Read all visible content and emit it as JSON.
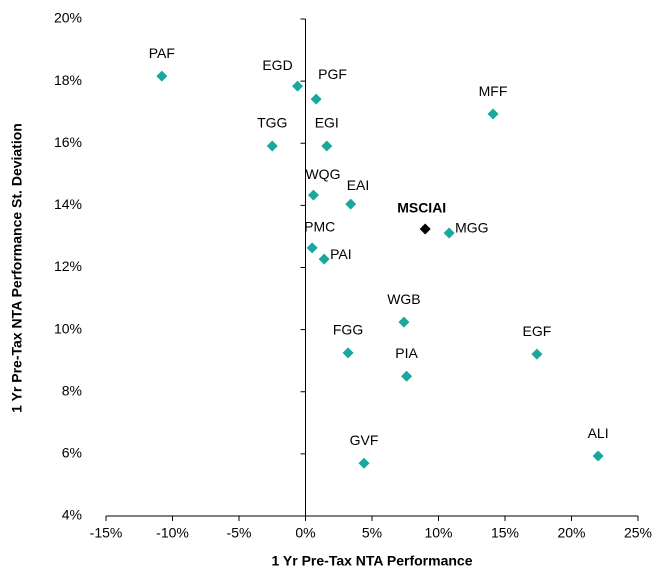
{
  "chart_data": {
    "type": "scatter",
    "xlabel": "1 Yr Pre-Tax NTA Performance",
    "ylabel": "1 Yr Pre-Tax NTA Performance St. Deviation",
    "xlim": [
      -15,
      25
    ],
    "ylim": [
      4,
      20
    ],
    "xticks": [
      {
        "value": -15,
        "label": "-15%"
      },
      {
        "value": -10,
        "label": "-10%"
      },
      {
        "value": -5,
        "label": "-5%"
      },
      {
        "value": 0,
        "label": "0%"
      },
      {
        "value": 5,
        "label": "5%"
      },
      {
        "value": 10,
        "label": "10%"
      },
      {
        "value": 15,
        "label": "15%"
      },
      {
        "value": 20,
        "label": "20%"
      },
      {
        "value": 25,
        "label": "25%"
      }
    ],
    "yticks": [
      {
        "value": 4,
        "label": "4%"
      },
      {
        "value": 6,
        "label": "6%"
      },
      {
        "value": 8,
        "label": "8%"
      },
      {
        "value": 10,
        "label": "10%"
      },
      {
        "value": 12,
        "label": "12%"
      },
      {
        "value": 14,
        "label": "14%"
      },
      {
        "value": 16,
        "label": "16%"
      },
      {
        "value": 18,
        "label": "18%"
      },
      {
        "value": 20,
        "label": "20%"
      }
    ],
    "points": [
      {
        "label": "PAF",
        "x": -10.8,
        "y": 18.16,
        "color": "#1aa89e"
      },
      {
        "label": "EGD",
        "x": -0.6,
        "y": 17.84,
        "color": "#1aa89e"
      },
      {
        "label": "PGF",
        "x": 0.8,
        "y": 17.42,
        "color": "#1aa89e"
      },
      {
        "label": "MFF",
        "x": 14.1,
        "y": 16.94,
        "color": "#1aa89e"
      },
      {
        "label": "TGG",
        "x": -2.5,
        "y": 15.91,
        "color": "#1aa89e"
      },
      {
        "label": "EGI",
        "x": 1.6,
        "y": 15.91,
        "color": "#1aa89e"
      },
      {
        "label": "WQG",
        "x": 0.6,
        "y": 14.33,
        "color": "#1aa89e"
      },
      {
        "label": "EAI",
        "x": 3.4,
        "y": 14.04,
        "color": "#1aa89e"
      },
      {
        "label": "MSCIAI",
        "x": 9.0,
        "y": 13.24,
        "color": "#000000"
      },
      {
        "label": "MGG",
        "x": 10.8,
        "y": 13.11,
        "color": "#1aa89e"
      },
      {
        "label": "PMC",
        "x": 0.5,
        "y": 12.63,
        "color": "#1aa89e"
      },
      {
        "label": "PAI",
        "x": 1.4,
        "y": 12.27,
        "color": "#1aa89e"
      },
      {
        "label": "WGB",
        "x": 7.4,
        "y": 10.24,
        "color": "#1aa89e"
      },
      {
        "label": "FGG",
        "x": 3.2,
        "y": 9.25,
        "color": "#1aa89e"
      },
      {
        "label": "EGF",
        "x": 17.4,
        "y": 9.21,
        "color": "#1aa89e"
      },
      {
        "label": "PIA",
        "x": 7.6,
        "y": 8.5,
        "color": "#1aa89e"
      },
      {
        "label": "GVF",
        "x": 4.4,
        "y": 5.7,
        "color": "#1aa89e"
      },
      {
        "label": "ALI",
        "x": 22.0,
        "y": 5.93,
        "color": "#1aa89e"
      }
    ]
  }
}
